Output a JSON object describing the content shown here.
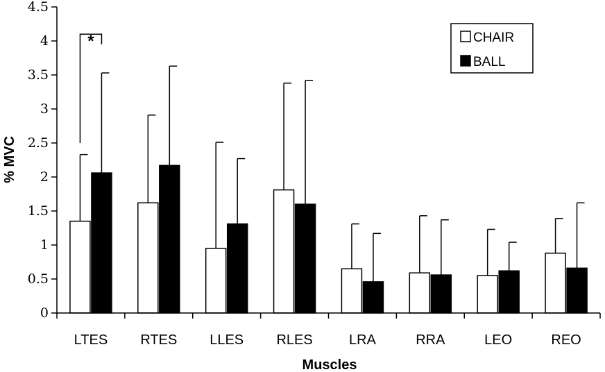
{
  "chart_data": {
    "type": "bar",
    "title": "",
    "xlabel": "Muscles",
    "ylabel": "% MVC",
    "ylim": [
      0,
      4.5
    ],
    "yticks": [
      "0",
      "0.5",
      "1",
      "1.5",
      "2",
      "2.5",
      "3",
      "3.5",
      "4",
      "4.5"
    ],
    "categories": [
      "LTES",
      "RTES",
      "LLES",
      "RLES",
      "LRA",
      "RRA",
      "LEO",
      "REO"
    ],
    "series": [
      {
        "name": "CHAIR",
        "color": "#ffffff",
        "values": [
          1.35,
          1.62,
          0.95,
          1.81,
          0.65,
          0.59,
          0.55,
          0.88
        ],
        "error_upper": [
          2.33,
          2.91,
          2.51,
          3.38,
          1.31,
          1.43,
          1.23,
          1.39
        ]
      },
      {
        "name": "BALL",
        "color": "#000000",
        "values": [
          2.06,
          2.17,
          1.31,
          1.6,
          0.46,
          0.56,
          0.62,
          0.66
        ],
        "error_upper": [
          3.53,
          3.63,
          2.27,
          3.42,
          1.17,
          1.37,
          1.04,
          1.62
        ]
      }
    ],
    "legend_position": "top-right",
    "grid": false,
    "annotations": [
      {
        "text": "*",
        "category": "LTES",
        "between": [
          "CHAIR",
          "BALL"
        ]
      }
    ]
  }
}
